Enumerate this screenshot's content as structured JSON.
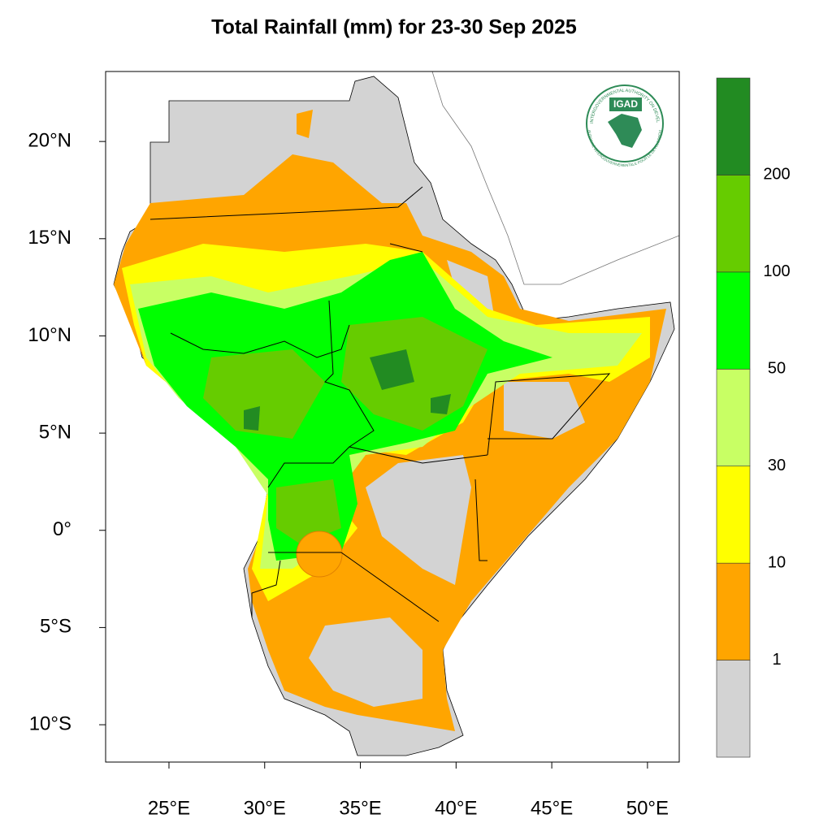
{
  "title": "Total Rainfall (mm) for 23-30 Sep 2025",
  "map": {
    "lon_range": [
      21.69,
      51.66
    ],
    "lat_range": [
      -11.92,
      23.6
    ],
    "lon_ticks": [
      {
        "value": 25,
        "label": "25°E"
      },
      {
        "value": 30,
        "label": "30°E"
      },
      {
        "value": 35,
        "label": "35°E"
      },
      {
        "value": 40,
        "label": "40°E"
      },
      {
        "value": 45,
        "label": "45°E"
      },
      {
        "value": 50,
        "label": "50°E"
      }
    ],
    "lat_ticks": [
      {
        "value": 20,
        "label": "20°N"
      },
      {
        "value": 15,
        "label": "15°N"
      },
      {
        "value": 10,
        "label": "10°N"
      },
      {
        "value": 5,
        "label": "5°N"
      },
      {
        "value": 0,
        "label": "0°"
      },
      {
        "value": -5,
        "label": "5°S"
      },
      {
        "value": -10,
        "label": "10°S"
      }
    ]
  },
  "colorbar": {
    "colors": [
      "#d3d3d3",
      "#ffa500",
      "#ffff00",
      "#c8ff64",
      "#00ff00",
      "#66cc00",
      "#228b22"
    ],
    "labels": [
      1,
      10,
      30,
      50,
      100,
      200
    ]
  },
  "logo": {
    "name": "IGAD",
    "ring_top": "INTERGOVERNMENTAL AUTHORITY ON DEVELOPMENT",
    "ring_bottom": "AUTORITÉ INTERGOUVERNEMENTALE POUR LE DÉVELOPPEMENT"
  }
}
